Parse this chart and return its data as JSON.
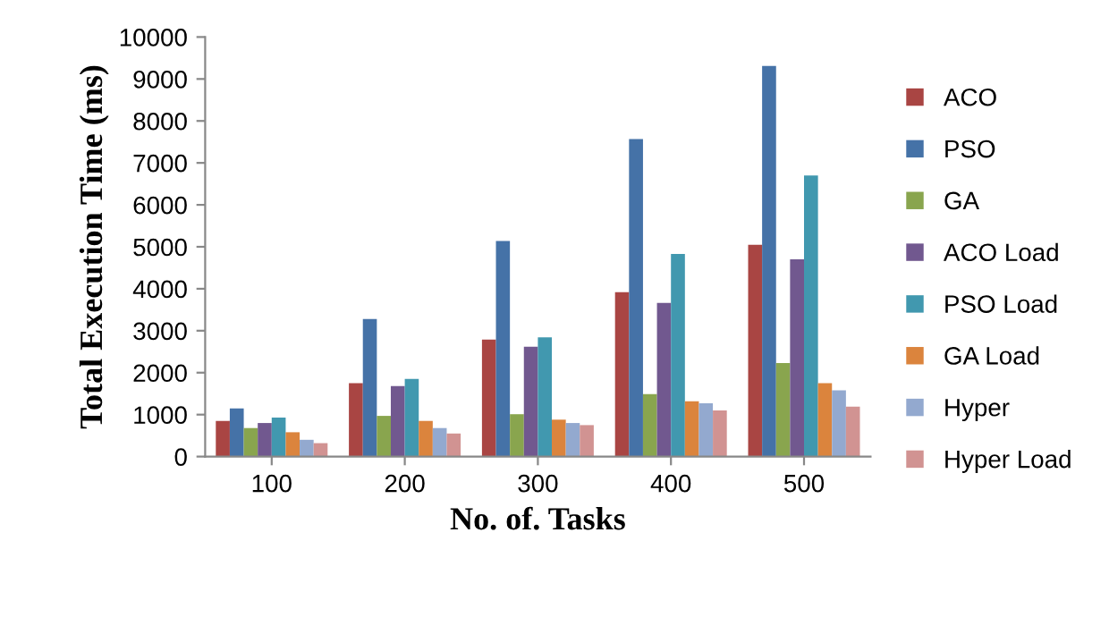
{
  "chart_data": {
    "type": "bar",
    "xlabel": "No. of. Tasks",
    "ylabel": "Total Execution Time (ms)",
    "categories": [
      "100",
      "200",
      "300",
      "400",
      "500"
    ],
    "ylim": [
      0,
      10000
    ],
    "yticks": [
      0,
      1000,
      2000,
      3000,
      4000,
      5000,
      6000,
      7000,
      8000,
      9000,
      10000
    ],
    "grid": false,
    "legend": "right",
    "series": [
      {
        "name": "ACO",
        "color": "#a94543",
        "values": [
          850,
          1750,
          2790,
          3920,
          5050
        ]
      },
      {
        "name": "PSO",
        "color": "#4572a7",
        "values": [
          1150,
          3280,
          5140,
          7570,
          9310
        ]
      },
      {
        "name": "GA",
        "color": "#89a54e",
        "values": [
          680,
          970,
          1010,
          1490,
          2230
        ]
      },
      {
        "name": "ACO Load",
        "color": "#71588f",
        "values": [
          800,
          1680,
          2620,
          3660,
          4700
        ]
      },
      {
        "name": "PSO Load",
        "color": "#4198af",
        "values": [
          930,
          1850,
          2840,
          4830,
          6700
        ]
      },
      {
        "name": "GA Load",
        "color": "#db843d",
        "values": [
          580,
          850,
          880,
          1320,
          1750
        ]
      },
      {
        "name": "Hyper",
        "color": "#93a9cf",
        "values": [
          400,
          680,
          800,
          1270,
          1580
        ]
      },
      {
        "name": "Hyper Load",
        "color": "#d19392",
        "values": [
          320,
          550,
          750,
          1100,
          1190
        ]
      }
    ]
  }
}
